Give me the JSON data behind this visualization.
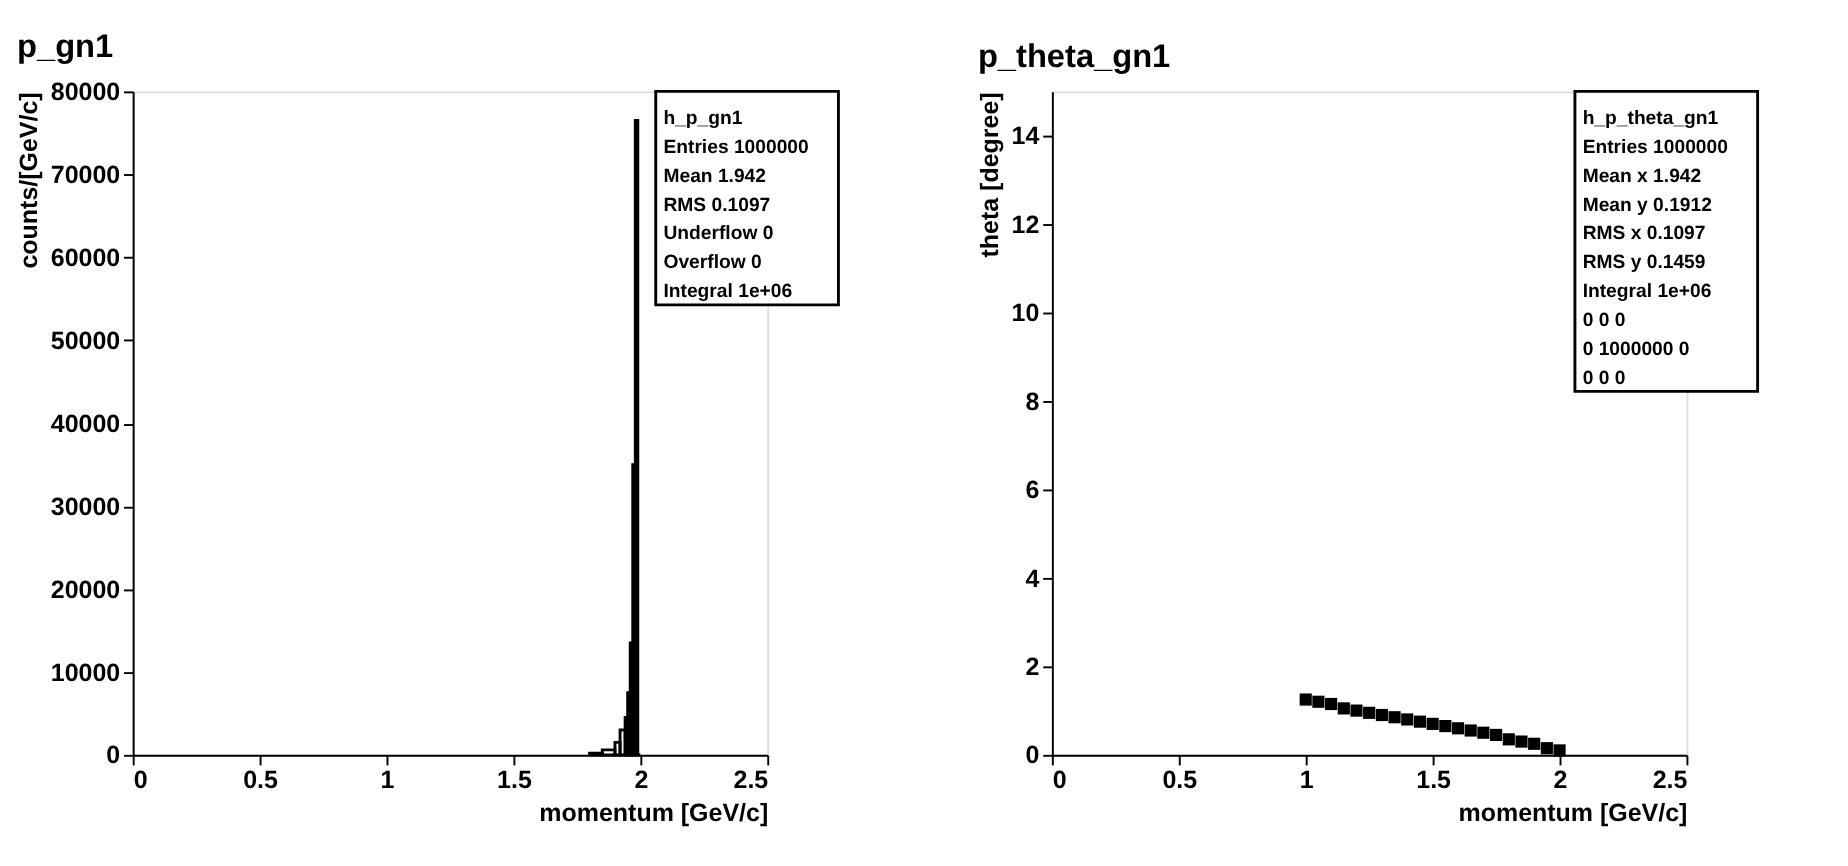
{
  "chart_data": [
    {
      "type": "histogram",
      "title": "p_gn1",
      "xlabel": "momentum [GeV/c]",
      "ylabel": "counts/[GeV/c]",
      "color": "#000000",
      "bins": [
        1.8,
        1.85,
        1.9,
        1.92,
        1.94,
        1.95,
        1.96,
        1.97,
        1.98,
        1.99,
        2.0
      ],
      "values": [
        200,
        600,
        1500,
        3000,
        4500,
        7500,
        13500,
        35000,
        76500,
        0
      ],
      "xlim": [
        0,
        2.5
      ],
      "xticks": [
        0,
        0.5,
        1,
        1.5,
        2,
        2.5
      ],
      "ylim": [
        0,
        80000
      ],
      "yticks": [
        0,
        10000,
        20000,
        30000,
        40000,
        50000,
        60000,
        70000,
        80000
      ],
      "grid": false,
      "annotations": [
        "h_p_gn1",
        "Entries 1000000",
        "Mean 1.942",
        "RMS 0.1097",
        "Underflow 0",
        "Overflow 0",
        "Integral 1e+06"
      ]
    },
    {
      "type": "scatter",
      "title": "p_theta_gn1",
      "xlabel": "momentum [GeV/c]",
      "ylabel": "theta [degree]",
      "color": "#000000",
      "marker": "square",
      "x": [
        1.0,
        1.05,
        1.1,
        1.15,
        1.2,
        1.25,
        1.3,
        1.35,
        1.4,
        1.45,
        1.5,
        1.55,
        1.6,
        1.65,
        1.7,
        1.75,
        1.8,
        1.85,
        1.9,
        1.95,
        2.0
      ],
      "values": [
        1.25,
        1.2,
        1.15,
        1.05,
        1.0,
        0.95,
        0.9,
        0.85,
        0.8,
        0.75,
        0.7,
        0.65,
        0.6,
        0.55,
        0.5,
        0.45,
        0.35,
        0.3,
        0.25,
        0.15,
        0.1
      ],
      "xlim": [
        0,
        2.5
      ],
      "xticks": [
        0,
        0.5,
        1,
        1.5,
        2,
        2.5
      ],
      "ylim": [
        0,
        15
      ],
      "yticks": [
        0,
        2,
        4,
        6,
        8,
        10,
        12,
        14
      ],
      "grid": false,
      "annotations": [
        "h_p_theta_gn1",
        "Entries 1000000",
        "Mean x 1.942",
        "Mean y 0.1912",
        "RMS x 0.1097",
        "RMS y 0.1459",
        "Integral 1e+06",
        "0 0 0",
        "0 1000000 0",
        "0 0 0"
      ]
    }
  ]
}
